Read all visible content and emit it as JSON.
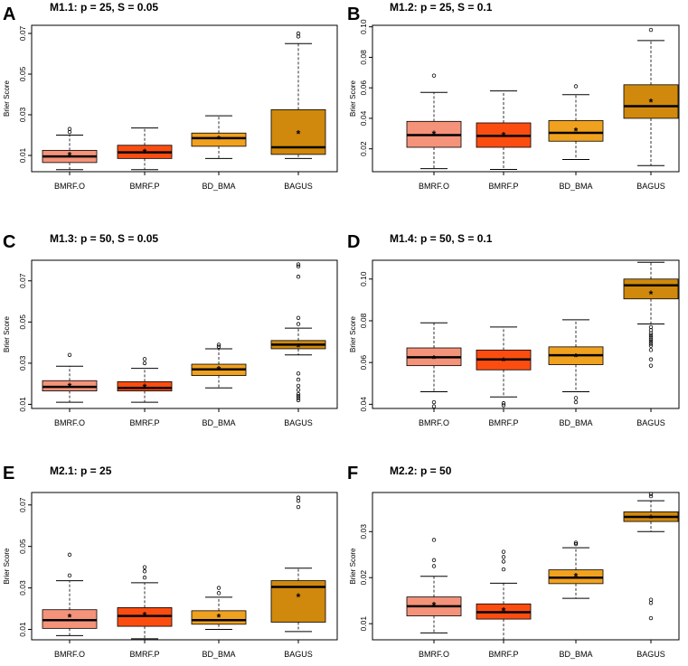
{
  "colors": {
    "BMRF.O": "#F4937A",
    "BMRF.P": "#FC4D10",
    "BD_BMA": "#F0A11E",
    "BAGUS": "#D0890C"
  },
  "chart_data": [
    {
      "panel": "A",
      "title": "M1.1: p = 25, S = 0.05",
      "type": "boxplot",
      "ylabel": "Brier Score",
      "yticks": [
        0.01,
        0.03,
        0.05,
        0.07
      ],
      "ylim": [
        0.002,
        0.074
      ],
      "categories": [
        "BMRF.O",
        "BMRF.P",
        "BD_BMA",
        "BAGUS"
      ],
      "boxes": [
        {
          "min": 0.003,
          "q1": 0.0065,
          "median": 0.0095,
          "q3": 0.0125,
          "max": 0.02,
          "mean": 0.0103,
          "outliers": [
            0.0215,
            0.023
          ]
        },
        {
          "min": 0.003,
          "q1": 0.0085,
          "median": 0.0115,
          "q3": 0.015,
          "max": 0.0235,
          "mean": 0.0117,
          "outliers": []
        },
        {
          "min": 0.0085,
          "q1": 0.0145,
          "median": 0.0185,
          "q3": 0.021,
          "max": 0.0295,
          "mean": 0.0183,
          "outliers": []
        },
        {
          "min": 0.0085,
          "q1": 0.0105,
          "median": 0.014,
          "q3": 0.0325,
          "max": 0.065,
          "mean": 0.021,
          "outliers": [
            0.0685,
            0.07
          ]
        }
      ]
    },
    {
      "panel": "B",
      "title": "M1.2: p = 25, S = 0.1",
      "type": "boxplot",
      "ylabel": "Brier Score",
      "yticks": [
        0.02,
        0.04,
        0.06,
        0.08,
        0.1
      ],
      "ylim": [
        0.005,
        0.101
      ],
      "categories": [
        "BMRF.O",
        "BMRF.P",
        "BD_BMA",
        "BAGUS"
      ],
      "boxes": [
        {
          "min": 0.007,
          "q1": 0.021,
          "median": 0.029,
          "q3": 0.038,
          "max": 0.057,
          "mean": 0.03,
          "outliers": [
            0.068
          ]
        },
        {
          "min": 0.0065,
          "q1": 0.021,
          "median": 0.0285,
          "q3": 0.037,
          "max": 0.058,
          "mean": 0.029,
          "outliers": []
        },
        {
          "min": 0.013,
          "q1": 0.025,
          "median": 0.0305,
          "q3": 0.0385,
          "max": 0.0555,
          "mean": 0.032,
          "outliers": [
            0.061
          ]
        },
        {
          "min": 0.009,
          "q1": 0.04,
          "median": 0.048,
          "q3": 0.062,
          "max": 0.091,
          "mean": 0.051,
          "outliers": [
            0.098
          ]
        }
      ]
    },
    {
      "panel": "C",
      "title": "M1.3: p = 50, S = 0.05",
      "type": "boxplot",
      "ylabel": "Brier Score",
      "yticks": [
        0.01,
        0.03,
        0.05,
        0.07
      ],
      "ylim": [
        0.008,
        0.08
      ],
      "categories": [
        "BMRF.O",
        "BMRF.P",
        "BD_BMA",
        "BAGUS"
      ],
      "boxes": [
        {
          "min": 0.011,
          "q1": 0.0165,
          "median": 0.0185,
          "q3": 0.0215,
          "max": 0.0285,
          "mean": 0.019,
          "outliers": [
            0.034
          ]
        },
        {
          "min": 0.011,
          "q1": 0.0165,
          "median": 0.018,
          "q3": 0.021,
          "max": 0.0275,
          "mean": 0.0185,
          "outliers": [
            0.03,
            0.032
          ]
        },
        {
          "min": 0.018,
          "q1": 0.024,
          "median": 0.027,
          "q3": 0.0295,
          "max": 0.037,
          "mean": 0.027,
          "outliers": [
            0.038,
            0.039
          ]
        },
        {
          "min": 0.034,
          "q1": 0.037,
          "median": 0.039,
          "q3": 0.041,
          "max": 0.047,
          "mean": 0.038,
          "outliers": [
            0.012,
            0.013,
            0.014,
            0.015,
            0.017,
            0.019,
            0.022,
            0.025,
            0.049,
            0.052,
            0.072,
            0.077,
            0.078
          ]
        }
      ]
    },
    {
      "panel": "D",
      "title": "M1.4: p = 50, S = 0.1",
      "type": "boxplot",
      "ylabel": "Brier Score",
      "yticks": [
        0.04,
        0.06,
        0.08,
        0.1
      ],
      "ylim": [
        0.038,
        0.109
      ],
      "categories": [
        "BMRF.O",
        "BMRF.P",
        "BD_BMA",
        "BAGUS"
      ],
      "boxes": [
        {
          "min": 0.046,
          "q1": 0.0585,
          "median": 0.0625,
          "q3": 0.067,
          "max": 0.079,
          "mean": 0.062,
          "outliers": [
            0.039,
            0.041
          ]
        },
        {
          "min": 0.0435,
          "q1": 0.0565,
          "median": 0.0615,
          "q3": 0.066,
          "max": 0.077,
          "mean": 0.061,
          "outliers": [
            0.0395,
            0.0405
          ]
        },
        {
          "min": 0.046,
          "q1": 0.059,
          "median": 0.0635,
          "q3": 0.0675,
          "max": 0.0805,
          "mean": 0.063,
          "outliers": [
            0.041,
            0.043
          ]
        },
        {
          "min": 0.0785,
          "q1": 0.0905,
          "median": 0.097,
          "q3": 0.1,
          "max": 0.108,
          "mean": 0.093,
          "outliers": [
            0.0585,
            0.0615,
            0.066,
            0.068,
            0.069,
            0.07,
            0.071,
            0.072,
            0.073,
            0.074,
            0.0755,
            0.077
          ]
        }
      ]
    },
    {
      "panel": "E",
      "title": "M2.1: p = 25",
      "type": "boxplot",
      "ylabel": "Brier Score",
      "yticks": [
        0.01,
        0.03,
        0.05,
        0.07
      ],
      "ylim": [
        0.005,
        0.076
      ],
      "categories": [
        "BMRF.O",
        "BMRF.P",
        "BD_BMA",
        "BAGUS"
      ],
      "boxes": [
        {
          "min": 0.007,
          "q1": 0.0105,
          "median": 0.0145,
          "q3": 0.0195,
          "max": 0.0335,
          "mean": 0.016,
          "outliers": [
            0.036,
            0.046
          ]
        },
        {
          "min": 0.0055,
          "q1": 0.0115,
          "median": 0.0165,
          "q3": 0.0205,
          "max": 0.0325,
          "mean": 0.017,
          "outliers": [
            0.035,
            0.038,
            0.04
          ]
        },
        {
          "min": 0.01,
          "q1": 0.0125,
          "median": 0.0145,
          "q3": 0.019,
          "max": 0.0255,
          "mean": 0.016,
          "outliers": [
            0.0275,
            0.03
          ]
        },
        {
          "min": 0.009,
          "q1": 0.0135,
          "median": 0.0305,
          "q3": 0.0335,
          "max": 0.0395,
          "mean": 0.026,
          "outliers": [
            0.069,
            0.072,
            0.0735
          ]
        }
      ]
    },
    {
      "panel": "F",
      "title": "M2.2: p = 50",
      "type": "boxplot",
      "ylabel": "Brier Score",
      "yticks": [
        0.01,
        0.02,
        0.03
      ],
      "ylim": [
        0.0065,
        0.0385
      ],
      "categories": [
        "BMRF.O",
        "BMRF.P",
        "BD_BMA",
        "BAGUS"
      ],
      "boxes": [
        {
          "min": 0.008,
          "q1": 0.0117,
          "median": 0.0138,
          "q3": 0.0158,
          "max": 0.0203,
          "mean": 0.0141,
          "outliers": [
            0.0225,
            0.0238,
            0.0282
          ]
        },
        {
          "min": 0.0065,
          "q1": 0.011,
          "median": 0.0125,
          "q3": 0.0143,
          "max": 0.0188,
          "mean": 0.0129,
          "outliers": [
            0.0218,
            0.0235,
            0.0245,
            0.0256
          ]
        },
        {
          "min": 0.0155,
          "q1": 0.0187,
          "median": 0.02,
          "q3": 0.0217,
          "max": 0.0265,
          "mean": 0.0203,
          "outliers": [
            0.0273,
            0.0276
          ]
        },
        {
          "min": 0.03,
          "q1": 0.0322,
          "median": 0.0332,
          "q3": 0.0343,
          "max": 0.0367,
          "mean": 0.033,
          "outliers": [
            0.0112,
            0.0145,
            0.0152,
            0.0377,
            0.0382
          ]
        }
      ]
    }
  ]
}
